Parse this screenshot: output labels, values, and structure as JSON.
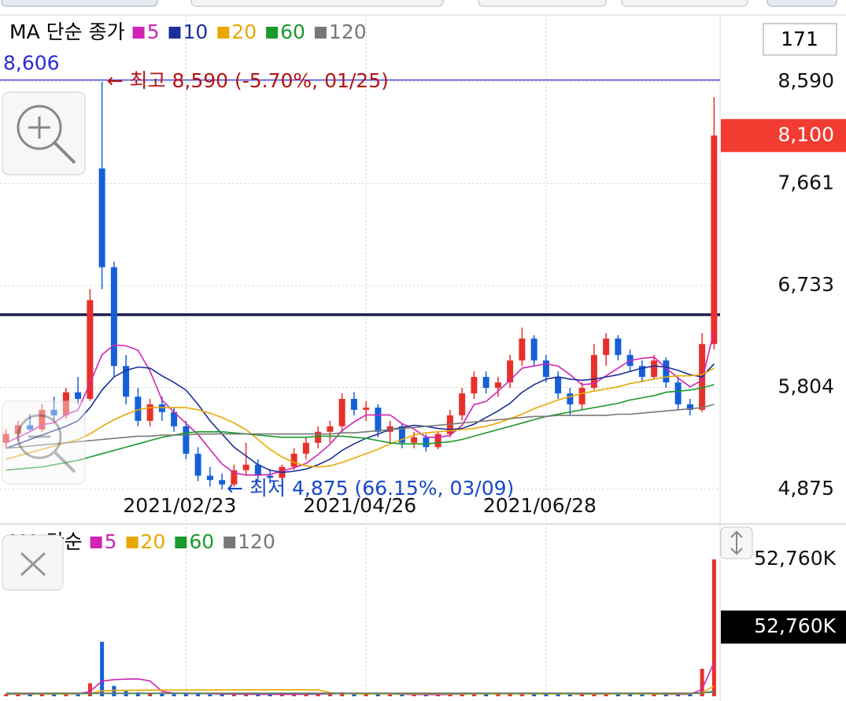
{
  "chart_data": [
    {
      "type": "candlestick",
      "legend_title": "MA 단순 종가",
      "categories": [
        null,
        null,
        null,
        null,
        null,
        null,
        null,
        null,
        null,
        null,
        null,
        null,
        null,
        null,
        null,
        "2021/02/23",
        null,
        null,
        null,
        null,
        null,
        null,
        null,
        null,
        null,
        null,
        null,
        null,
        null,
        null,
        "2021/04/26",
        null,
        null,
        null,
        null,
        null,
        null,
        null,
        null,
        null,
        null,
        null,
        null,
        null,
        null,
        "2021/06/28",
        null,
        null,
        null,
        null,
        null,
        null,
        null,
        null,
        null,
        null,
        null,
        null,
        null,
        null
      ],
      "open": [
        5300,
        5380,
        5460,
        5420,
        5600,
        5550,
        5760,
        5700,
        7800,
        6900,
        6000,
        5720,
        5500,
        5650,
        5580,
        5450,
        5200,
        5000,
        4960,
        4920,
        5050,
        5100,
        5000,
        4980,
        5080,
        5200,
        5300,
        5400,
        5450,
        5700,
        5600,
        5620,
        5400,
        5450,
        5300,
        5350,
        5260,
        5380,
        5550,
        5750,
        5900,
        5800,
        5850,
        6050,
        6250,
        6050,
        5900,
        5750,
        5650,
        5800,
        6100,
        6250,
        6100,
        6000,
        5900,
        6050,
        5850,
        5650,
        5600,
        6200
      ],
      "high": [
        5420,
        5500,
        5560,
        5650,
        5720,
        5800,
        5900,
        6700,
        8590,
        6950,
        6100,
        5800,
        5700,
        5720,
        5620,
        5500,
        5260,
        5080,
        5020,
        5100,
        5300,
        5150,
        5060,
        5100,
        5250,
        5350,
        5450,
        5500,
        5750,
        5760,
        5680,
        5650,
        5500,
        5480,
        5400,
        5380,
        5400,
        5600,
        5800,
        5950,
        5950,
        5900,
        6100,
        6350,
        6280,
        6100,
        5950,
        5800,
        5850,
        6200,
        6300,
        6280,
        6150,
        6050,
        6100,
        6080,
        5900,
        5700,
        6300,
        8450
      ],
      "low": [
        5250,
        5320,
        5400,
        5400,
        5500,
        5520,
        5650,
        5680,
        6700,
        5900,
        5650,
        5450,
        5450,
        5500,
        5400,
        5150,
        4950,
        4900,
        4875,
        4900,
        5000,
        4950,
        4930,
        4960,
        5050,
        5150,
        5250,
        5300,
        5400,
        5550,
        5500,
        5350,
        5300,
        5250,
        5250,
        5220,
        5240,
        5350,
        5500,
        5700,
        5750,
        5720,
        5800,
        6000,
        6000,
        5850,
        5700,
        5550,
        5600,
        5780,
        6000,
        6050,
        5950,
        5850,
        5880,
        5800,
        5600,
        5550,
        5580,
        6150
      ],
      "close": [
        5380,
        5460,
        5420,
        5600,
        5550,
        5760,
        5700,
        6600,
        6900,
        6000,
        5720,
        5500,
        5650,
        5580,
        5450,
        5200,
        5000,
        4960,
        4920,
        5050,
        5100,
        5000,
        4980,
        5080,
        5200,
        5300,
        5400,
        5450,
        5700,
        5600,
        5620,
        5400,
        5450,
        5300,
        5350,
        5260,
        5380,
        5550,
        5750,
        5900,
        5800,
        5850,
        6050,
        6250,
        6050,
        5900,
        5750,
        5650,
        5800,
        6100,
        6250,
        6100,
        6000,
        5900,
        6050,
        5850,
        5650,
        5600,
        6200,
        8100
      ],
      "up_color": "#e8302a",
      "down_color": "#1560d8",
      "series": [
        {
          "name": "5",
          "color": "#d024b4",
          "values": [
            5300,
            5350,
            5400,
            5465,
            5482,
            5558,
            5598,
            5842,
            6102,
            6192,
            6184,
            6144,
            5954,
            5690,
            5580,
            5476,
            5376,
            5238,
            5106,
            5026,
            5006,
            5006,
            5010,
            5042,
            5072,
            5112,
            5192,
            5286,
            5410,
            5490,
            5554,
            5554,
            5554,
            5474,
            5424,
            5352,
            5348,
            5368,
            5458,
            5648,
            5676,
            5770,
            5870,
            5980,
            6000,
            6020,
            6000,
            5920,
            5830,
            5840,
            5910,
            5980,
            6050,
            6070,
            6080,
            5980,
            5890,
            5810,
            5870,
            6320
          ]
        },
        {
          "name": "10",
          "color": "#1a3098",
          "values": [
            5250,
            5290,
            5330,
            5370,
            5410,
            5450,
            5500,
            5620,
            5780,
            5900,
            5960,
            5990,
            5980,
            5910,
            5850,
            5780,
            5650,
            5500,
            5380,
            5260,
            5180,
            5100,
            5050,
            5030,
            5040,
            5060,
            5100,
            5150,
            5230,
            5290,
            5340,
            5380,
            5420,
            5440,
            5460,
            5450,
            5430,
            5420,
            5430,
            5470,
            5530,
            5590,
            5660,
            5760,
            5830,
            5880,
            5900,
            5880,
            5870,
            5880,
            5900,
            5920,
            5950,
            5980,
            6000,
            5990,
            5960,
            5920,
            5900,
            6020
          ]
        },
        {
          "name": "20",
          "color": "#e8a800",
          "values": [
            5150,
            5180,
            5210,
            5240,
            5270,
            5300,
            5330,
            5380,
            5450,
            5510,
            5560,
            5600,
            5620,
            5620,
            5620,
            5620,
            5600,
            5570,
            5530,
            5480,
            5420,
            5330,
            5240,
            5170,
            5120,
            5090,
            5080,
            5090,
            5120,
            5160,
            5200,
            5240,
            5290,
            5330,
            5370,
            5390,
            5400,
            5410,
            5420,
            5430,
            5450,
            5480,
            5520,
            5560,
            5610,
            5650,
            5690,
            5720,
            5750,
            5770,
            5790,
            5810,
            5840,
            5860,
            5880,
            5900,
            5910,
            5910,
            5920,
            5980
          ]
        },
        {
          "name": "60",
          "color": "#1a9a2a",
          "values": [
            5050,
            5060,
            5070,
            5080,
            5100,
            5120,
            5140,
            5170,
            5200,
            5230,
            5260,
            5290,
            5320,
            5350,
            5370,
            5390,
            5400,
            5400,
            5400,
            5390,
            5380,
            5370,
            5360,
            5350,
            5350,
            5350,
            5360,
            5360,
            5360,
            5350,
            5340,
            5320,
            5300,
            5290,
            5290,
            5290,
            5300,
            5310,
            5330,
            5360,
            5390,
            5420,
            5450,
            5480,
            5510,
            5540,
            5560,
            5580,
            5600,
            5620,
            5640,
            5660,
            5690,
            5710,
            5730,
            5760,
            5770,
            5780,
            5800,
            5830
          ]
        },
        {
          "name": "120",
          "color": "#777777",
          "values": [
            5250,
            5260,
            5270,
            5280,
            5290,
            5300,
            5310,
            5320,
            5330,
            5340,
            5350,
            5360,
            5360,
            5370,
            5370,
            5370,
            5380,
            5380,
            5380,
            5380,
            5380,
            5380,
            5380,
            5380,
            5380,
            5380,
            5380,
            5380,
            5390,
            5390,
            5400,
            5410,
            5420,
            5430,
            5440,
            5450,
            5460,
            5470,
            5480,
            5490,
            5500,
            5510,
            5520,
            5530,
            5540,
            5540,
            5550,
            5550,
            5550,
            5550,
            5550,
            5560,
            5560,
            5570,
            5580,
            5590,
            5600,
            5610,
            5620,
            5650
          ]
        }
      ],
      "ylim": [
        4567,
        9192
      ],
      "yticks": [
        {
          "value": 8590,
          "label": "8,590"
        },
        {
          "value": 7661,
          "label": "7,661"
        },
        {
          "value": 6733,
          "label": "6,733"
        },
        {
          "value": 5804,
          "label": "5,804"
        },
        {
          "value": 4875,
          "label": "4,875"
        }
      ],
      "grid": true,
      "count": 171,
      "price_tag": {
        "value": 8100,
        "label": "8,100",
        "color": "#f23c32"
      },
      "ref_lines": [
        {
          "value": 8606,
          "label": "8,606",
          "color": "#2a2ad8"
        },
        {
          "value": 6467,
          "color": "#1c1c50"
        }
      ],
      "annotations": [
        {
          "text": "← 최고 8,590 (-5.70%, 01/25)",
          "value": 8590,
          "index": 8,
          "color": "#b81414"
        },
        {
          "text": "← 최저 4,875 (66.15%, 03/09)",
          "value": 4875,
          "index": 18,
          "color": "#1848c8"
        }
      ]
    },
    {
      "type": "volume",
      "legend_title": "MA 단순",
      "values": [
        800,
        900,
        700,
        1200,
        900,
        1100,
        1000,
        5000,
        21000,
        4000,
        2000,
        1500,
        1000,
        900,
        800,
        1200,
        900,
        700,
        600,
        800,
        900,
        700,
        600,
        700,
        900,
        1000,
        1100,
        900,
        1500,
        1000,
        900,
        800,
        700,
        600,
        700,
        600,
        800,
        1000,
        1300,
        1200,
        900,
        800,
        1100,
        1400,
        1000,
        900,
        800,
        700,
        900,
        1300,
        1200,
        900,
        800,
        700,
        900,
        800,
        700,
        900,
        10600,
        52760
      ],
      "series": [
        {
          "name": "5",
          "color": "#d024b4",
          "values": [
            800,
            850,
            800,
            900,
            900,
            960,
            980,
            1840,
            5820,
            6420,
            6600,
            6700,
            5900,
            1880,
            1240,
            1080,
            1060,
            1000,
            840,
            840,
            820,
            740,
            720,
            720,
            740,
            780,
            860,
            920,
            1080,
            1100,
            1080,
            1020,
            980,
            800,
            740,
            680,
            680,
            740,
            880,
            980,
            1040,
            1040,
            1060,
            1140,
            1040,
            1040,
            1000,
            1000,
            860,
            920,
            980,
            1000,
            980,
            980,
            960,
            820,
            800,
            800,
            2580,
            13160
          ]
        },
        {
          "name": "20",
          "color": "#e8a800",
          "values": [
            900,
            900,
            900,
            900,
            900,
            900,
            900,
            1100,
            2100,
            2250,
            2300,
            2350,
            2380,
            2400,
            2420,
            2440,
            2450,
            2460,
            2460,
            2470,
            2480,
            2480,
            2480,
            2480,
            2480,
            2480,
            2480,
            1400,
            1000,
            900,
            900,
            900,
            900,
            900,
            900,
            900,
            900,
            900,
            900,
            900,
            900,
            900,
            900,
            900,
            900,
            900,
            900,
            900,
            900,
            900,
            900,
            900,
            900,
            900,
            900,
            900,
            900,
            900,
            1350,
            3900
          ]
        },
        {
          "name": "60",
          "color": "#1a9a2a",
          "values": [
            1100,
            1100,
            1100,
            1100,
            1100,
            1100,
            1100,
            1100,
            1100,
            1100,
            1100,
            1100,
            1100,
            1100,
            1100,
            1100,
            1100,
            1100,
            1100,
            1100,
            1100,
            1100,
            1100,
            1100,
            1100,
            1100,
            1100,
            1100,
            1100,
            1100,
            1100,
            1100,
            1100,
            1100,
            1100,
            1100,
            1100,
            1100,
            1100,
            1100,
            1100,
            1100,
            1100,
            1100,
            1100,
            1100,
            1100,
            1100,
            1100,
            1100,
            1100,
            1100,
            1100,
            1100,
            1100,
            1100,
            1100,
            1100,
            1250,
            2000
          ]
        },
        {
          "name": "120",
          "color": "#777777",
          "values": [
            1200,
            1200,
            1200,
            1200,
            1200,
            1200,
            1200,
            1200,
            1200,
            1200,
            1200,
            1200,
            1200,
            1200,
            1200,
            1200,
            1200,
            1200,
            1200,
            1200,
            1200,
            1200,
            1200,
            1200,
            1200,
            1200,
            1200,
            1200,
            1200,
            1200,
            1200,
            1200,
            1200,
            1200,
            1200,
            1200,
            1200,
            1200,
            1200,
            1200,
            1200,
            1200,
            1200,
            1200,
            1200,
            1200,
            1200,
            1200,
            1200,
            1200,
            1200,
            1200,
            1200,
            1200,
            1200,
            1200,
            1200,
            1200,
            1300,
            1600
          ]
        }
      ],
      "ylim": [
        0,
        65800
      ],
      "yticks": [
        {
          "value": 52760,
          "label": "52,760K"
        }
      ],
      "value_tag": "52,760K"
    }
  ]
}
